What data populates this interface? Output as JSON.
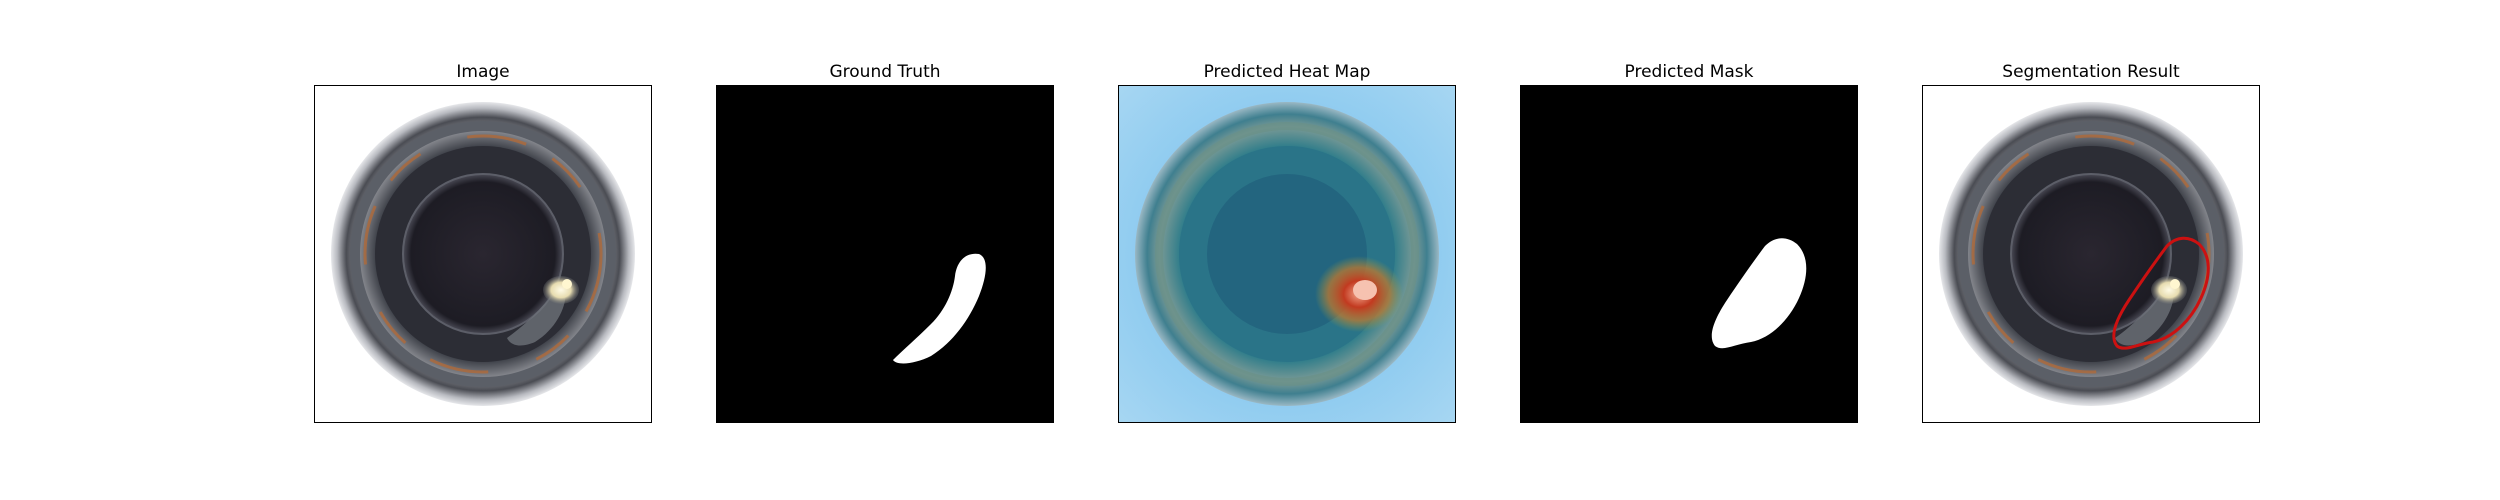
{
  "panels": [
    {
      "title": "Image"
    },
    {
      "title": "Ground Truth"
    },
    {
      "title": "Predicted Heat Map"
    },
    {
      "title": "Predicted Mask"
    },
    {
      "title": "Segmentation Result"
    }
  ],
  "colors": {
    "background": "#ffffff",
    "mask_background": "#000000",
    "mask_foreground": "#ffffff",
    "contour": "#cc1111",
    "heat_low": "#8ecbf0",
    "heat_high": "#c23a20"
  },
  "icons": [
    "bottle-mouth-photo",
    "defect-mask",
    "heat-map-overlay",
    "predicted-mask",
    "segmentation-contour"
  ]
}
